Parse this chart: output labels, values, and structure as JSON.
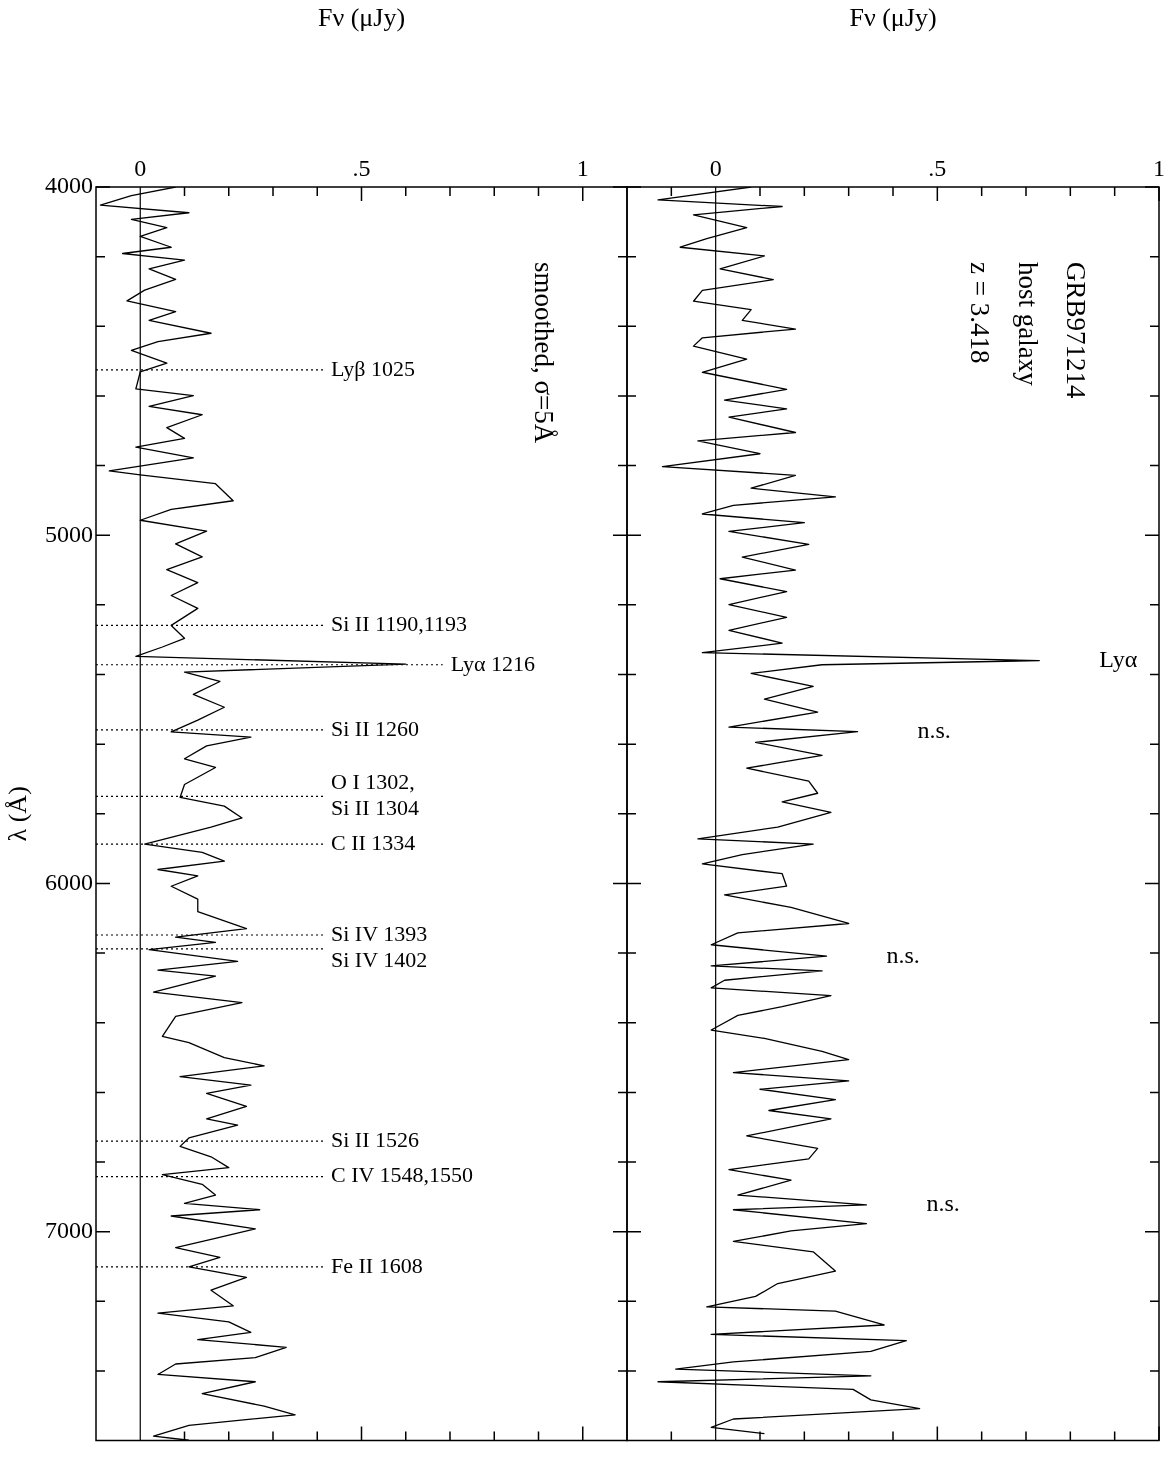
{
  "chart_data": [
    {
      "type": "line",
      "xlabel": "Fν (μJy)",
      "ylabel": "λ (Å)",
      "annotations": [
        "smoothed, σ=5Å"
      ],
      "marker": "none",
      "legend": false,
      "grid": false,
      "series": [
        {
          "color": "#000000",
          "x": [
            0.08,
            -0.02,
            -0.09,
            0.11,
            -0.02,
            0.06,
            0,
            0.07,
            -0.04,
            0.1,
            0.02,
            0.08,
            0.01,
            -0.03,
            0.08,
            0.02,
            0.16,
            0.04,
            -0.02,
            0.06,
            0,
            -0.01,
            0.12,
            0.02,
            0.14,
            0.06,
            0.1,
            -0.01,
            0.12,
            -0.07,
            0,
            0.17,
            0.21,
            0.07,
            0,
            0.15,
            0.08,
            0.14,
            0.06,
            0.13,
            0.07,
            0.13,
            0.07,
            0.1,
            0.05,
            -0.01,
            0.6,
            0.1,
            0.18,
            0.12,
            0.19,
            0.13,
            0.07,
            0.25,
            0.15,
            0.1,
            0.17,
            0.1,
            0.09,
            0.19,
            0.23,
            0.16,
            0.01,
            0.14,
            0.19,
            0.04,
            0.13,
            0.07,
            0.13,
            0.13,
            0.24,
            0.08,
            0.17,
            0.02,
            0.22,
            0.04,
            0.17,
            0.03,
            0.23,
            0.08,
            0.05,
            0.11,
            0.19,
            0.28,
            0.09,
            0.25,
            0.15,
            0.24,
            0.15,
            0.22,
            0.11,
            0.09,
            0.16,
            0.2,
            0.05,
            0.14,
            0.17,
            0.1,
            0.27,
            0.07,
            0.26,
            0.16,
            0.08,
            0.18,
            0.11,
            0.24,
            0.16,
            0.21,
            0.04,
            0.2,
            0.25,
            0.13,
            0.33,
            0.26,
            0.08,
            0.04,
            0.26,
            0.14,
            0.28,
            0.35,
            0.11,
            0.03,
            0.11
          ],
          "values": [
            4000,
            4025,
            4052,
            4074,
            4093,
            4117,
            4142,
            4173,
            4191,
            4210,
            4235,
            4265,
            4296,
            4327,
            4358,
            4383,
            4420,
            4444,
            4469,
            4506,
            4531,
            4580,
            4599,
            4630,
            4654,
            4691,
            4722,
            4747,
            4778,
            4815,
            4827,
            4852,
            4901,
            4926,
            4957,
            4988,
            5025,
            5062,
            5099,
            5136,
            5173,
            5210,
            5259,
            5296,
            5321,
            5348,
            5370,
            5393,
            5420,
            5457,
            5494,
            5531,
            5565,
            5580,
            5605,
            5642,
            5667,
            5716,
            5753,
            5778,
            5812,
            5838,
            5887,
            5911,
            5936,
            5960,
            5978,
            6008,
            6045,
            6081,
            6130,
            6154,
            6169,
            6190,
            6224,
            6249,
            6266,
            6312,
            6342,
            6382,
            6439,
            6457,
            6500,
            6524,
            6555,
            6579,
            6603,
            6640,
            6676,
            6694,
            6731,
            6755,
            6785,
            6816,
            6836,
            6864,
            6895,
            6919,
            6937,
            6955,
            6992,
            7022,
            7046,
            7074,
            7101,
            7131,
            7168,
            7213,
            7234,
            7259,
            7289,
            7310,
            7332,
            7362,
            7380,
            7410,
            7431,
            7465,
            7501,
            7526,
            7556,
            7587,
            7599
          ]
        }
      ],
      "ylim": [
        7600,
        4000
      ],
      "yticks": [
        {
          "value": 4000,
          "label": "4000"
        },
        {
          "value": 4200,
          "label": null
        },
        {
          "value": 4400,
          "label": null
        },
        {
          "value": 4600,
          "label": null
        },
        {
          "value": 4800,
          "label": null
        },
        {
          "value": 5000,
          "label": "5000"
        },
        {
          "value": 5200,
          "label": null
        },
        {
          "value": 5400,
          "label": null
        },
        {
          "value": 5600,
          "label": null
        },
        {
          "value": 5800,
          "label": null
        },
        {
          "value": 6000,
          "label": "6000"
        },
        {
          "value": 6200,
          "label": null
        },
        {
          "value": 6400,
          "label": null
        },
        {
          "value": 6600,
          "label": null
        },
        {
          "value": 6800,
          "label": null
        },
        {
          "value": 7000,
          "label": "7000"
        },
        {
          "value": 7200,
          "label": null
        },
        {
          "value": 7400,
          "label": null
        }
      ],
      "xlim": [
        -0.1,
        1.1
      ],
      "xticks": [
        {
          "value": 0,
          "label": "0"
        },
        {
          "value": 0.1,
          "label": null
        },
        {
          "value": 0.2,
          "label": null
        },
        {
          "value": 0.3,
          "label": null
        },
        {
          "value": 0.4,
          "label": null
        },
        {
          "value": 0.5,
          "label": ".5"
        },
        {
          "value": 0.6,
          "label": null
        },
        {
          "value": 0.7,
          "label": null
        },
        {
          "value": 0.8,
          "label": null
        },
        {
          "value": 0.9,
          "label": null
        },
        {
          "value": 1,
          "label": "1"
        }
      ],
      "ref_lines": [
        {
          "axis": "x",
          "value": 0,
          "line_style": "solid"
        },
        {
          "axis": "y",
          "value": 4525,
          "label": "Lyβ 1025",
          "line_style": "dotted"
        },
        {
          "axis": "y",
          "value": 5259,
          "label": "Si II 1190,1193",
          "line_style": "dotted"
        },
        {
          "axis": "y",
          "value": 5372,
          "label": "Lyα 1216",
          "line_style": "dotted"
        },
        {
          "axis": "y",
          "value": 5559,
          "label": "Si II 1260",
          "line_style": "dotted"
        },
        {
          "axis": "y",
          "value": 5750,
          "label": "O I 1302, Si II 1304",
          "line_style": "dotted"
        },
        {
          "axis": "y",
          "value": 5887,
          "label": "C II 1334",
          "line_style": "dotted"
        },
        {
          "axis": "y",
          "value": 6148,
          "label": "Si IV 1393",
          "line_style": "dotted"
        },
        {
          "axis": "y",
          "value": 6188,
          "label": "Si IV 1402",
          "line_style": "dotted"
        },
        {
          "axis": "y",
          "value": 6740,
          "label": "Si II 1526",
          "line_style": "dotted"
        },
        {
          "axis": "y",
          "value": 6842,
          "label": "C IV 1548,1550",
          "line_style": "dotted"
        },
        {
          "axis": "y",
          "value": 7101,
          "label": "Fe II 1608",
          "line_style": "dotted"
        }
      ]
    },
    {
      "type": "line",
      "xlabel": "Fν (μJy)",
      "annotations": [
        "GRB971214",
        "host galaxy",
        "z = 3.418",
        {
          "text": "Lyα",
          "x": 0.73,
          "y": 5360
        },
        {
          "text": "n.s.",
          "x": 0.32,
          "y": 5564
        },
        {
          "text": "n.s.",
          "x": 0.25,
          "y": 6209
        },
        {
          "text": "n.s.",
          "x": 0.34,
          "y": 6923
        }
      ],
      "marker": "none",
      "legend": false,
      "grid": false,
      "tick_labels": "x",
      "series": [
        {
          "color": "#000000",
          "x": [
            0.08,
            -0.13,
            0.15,
            -0.05,
            0.07,
            -0.02,
            -0.08,
            0.11,
            0.01,
            0.13,
            -0.03,
            -0.05,
            0.08,
            0.06,
            0.18,
            -0.03,
            -0.05,
            0.07,
            -0.03,
            0.16,
            0.02,
            0.16,
            0.03,
            0.18,
            -0.04,
            0.1,
            -0.12,
            0.18,
            0.08,
            0.27,
            0.04,
            -0.03,
            0.2,
            0.03,
            0.21,
            0.06,
            0.18,
            0.01,
            0.16,
            0.03,
            0.16,
            0.03,
            0.15,
            -0.03,
            0.73,
            0.24,
            0.08,
            0.22,
            0.11,
            0.23,
            0.03,
            0.32,
            0.09,
            0.24,
            0.07,
            0.21,
            0.23,
            0.15,
            0.26,
            0.14,
            -0.04,
            0.22,
            0.06,
            -0.03,
            0.15,
            0.16,
            0.02,
            0.17,
            0.3,
            0.05,
            -0.01,
            0.25,
            -0.01,
            0.24,
            0.02,
            -0.01,
            0.26,
            0.15,
            0.05,
            -0.01,
            0.11,
            0.24,
            0.3,
            0.04,
            0.3,
            0.1,
            0.27,
            0.12,
            0.26,
            0.07,
            0.23,
            0.21,
            0.03,
            0.17,
            0.05,
            0.34,
            0.04,
            0.34,
            0.17,
            0.04,
            0.22,
            0.27,
            0.14,
            0.09,
            -0.02,
            0.27,
            0.38,
            -0.01,
            0.43,
            0.35,
            0.04,
            -0.09,
            0.35,
            -0.13,
            0.31,
            0.35,
            0.46,
            0.04,
            -0.01,
            0.11
          ],
          "values": [
            4000,
            4037,
            4056,
            4080,
            4117,
            4148,
            4173,
            4198,
            4235,
            4266,
            4297,
            4328,
            4352,
            4383,
            4408,
            4433,
            4457,
            4494,
            4532,
            4581,
            4612,
            4637,
            4661,
            4705,
            4729,
            4766,
            4803,
            4828,
            4865,
            4890,
            4914,
            4939,
            4964,
            4989,
            5026,
            5063,
            5100,
            5125,
            5162,
            5199,
            5236,
            5273,
            5310,
            5337,
            5360,
            5372,
            5397,
            5434,
            5471,
            5508,
            5551,
            5564,
            5595,
            5632,
            5669,
            5706,
            5741,
            5766,
            5796,
            5838,
            5872,
            5887,
            5917,
            5944,
            5972,
            6008,
            6033,
            6069,
            6115,
            6142,
            6176,
            6209,
            6237,
            6251,
            6278,
            6300,
            6322,
            6354,
            6379,
            6421,
            6445,
            6482,
            6506,
            6543,
            6567,
            6591,
            6621,
            6652,
            6676,
            6725,
            6761,
            6791,
            6822,
            6852,
            6895,
            6923,
            6937,
            6977,
            6998,
            7028,
            7058,
            7113,
            7149,
            7186,
            7216,
            7228,
            7268,
            7295,
            7313,
            7344,
            7374,
            7395,
            7414,
            7431,
            7453,
            7483,
            7508,
            7538,
            7562,
            7580
          ]
        }
      ],
      "ylim": [
        7600,
        4000
      ],
      "yticks": [
        {
          "value": 4000,
          "label": null
        },
        {
          "value": 4200,
          "label": null
        },
        {
          "value": 4400,
          "label": null
        },
        {
          "value": 4600,
          "label": null
        },
        {
          "value": 4800,
          "label": null
        },
        {
          "value": 5000,
          "label": null
        },
        {
          "value": 5200,
          "label": null
        },
        {
          "value": 5400,
          "label": null
        },
        {
          "value": 5600,
          "label": null
        },
        {
          "value": 5800,
          "label": null
        },
        {
          "value": 6000,
          "label": null
        },
        {
          "value": 6200,
          "label": null
        },
        {
          "value": 6400,
          "label": null
        },
        {
          "value": 6600,
          "label": null
        },
        {
          "value": 6800,
          "label": null
        },
        {
          "value": 7000,
          "label": null
        },
        {
          "value": 7200,
          "label": null
        },
        {
          "value": 7400,
          "label": null
        }
      ],
      "xlim": [
        -0.2,
        1
      ],
      "xticks": [
        {
          "value": -0.1,
          "label": null
        },
        {
          "value": 0,
          "label": "0"
        },
        {
          "value": 0.1,
          "label": null
        },
        {
          "value": 0.2,
          "label": null
        },
        {
          "value": 0.3,
          "label": null
        },
        {
          "value": 0.4,
          "label": null
        },
        {
          "value": 0.5,
          "label": ".5"
        },
        {
          "value": 0.6,
          "label": null
        },
        {
          "value": 0.7,
          "label": null
        },
        {
          "value": 0.8,
          "label": null
        },
        {
          "value": 0.9,
          "label": null
        },
        {
          "value": 1,
          "label": "1"
        }
      ],
      "ref_lines": [
        {
          "axis": "x",
          "value": 0,
          "line_style": "solid"
        }
      ]
    }
  ]
}
